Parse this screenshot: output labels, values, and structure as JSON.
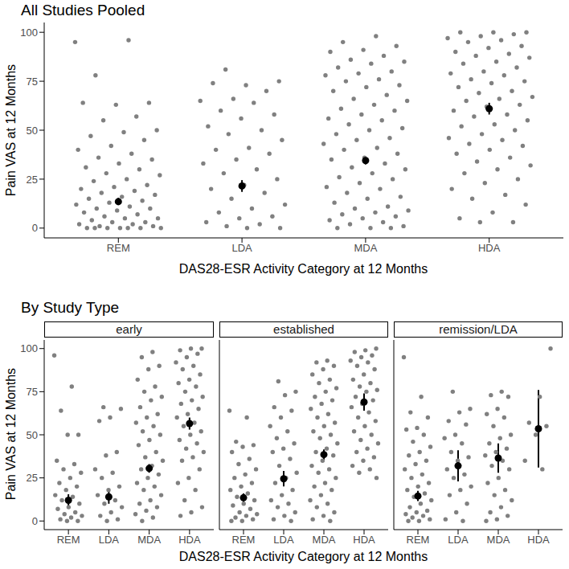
{
  "chart_data": [
    {
      "type": "scatter",
      "title": "All Studies Pooled",
      "x_label": "DAS28-ESR Activity Category at 12 Months",
      "y_label": "Pain VAS at 12 Months",
      "categories": [
        "REM",
        "LDA",
        "MDA",
        "HDA"
      ],
      "ylim": [
        -5,
        105
      ],
      "yticks": [
        0,
        25,
        50,
        75,
        100
      ],
      "color": "#808080",
      "values": [
        [
          95,
          96,
          78,
          64,
          63,
          64,
          57,
          55,
          50,
          49,
          47,
          45,
          42,
          40,
          38,
          36,
          35,
          33,
          31,
          30,
          28,
          27,
          25,
          24,
          22,
          21,
          20,
          19,
          18,
          17,
          16,
          15,
          14,
          13,
          12,
          11,
          10,
          10,
          9,
          8,
          7,
          6,
          5,
          5,
          4,
          3,
          3,
          2,
          2,
          1,
          1,
          0,
          0,
          0,
          0,
          0,
          0,
          0
        ],
        [
          81,
          75,
          73,
          74,
          70,
          66,
          65,
          64,
          60,
          58,
          56,
          52,
          50,
          48,
          45,
          41,
          40,
          38,
          35,
          33,
          30,
          28,
          25,
          22,
          20,
          18,
          15,
          12,
          10,
          8,
          6,
          5,
          3,
          2,
          1,
          0,
          0
        ],
        [
          98,
          95,
          93,
          91,
          90,
          88,
          86,
          85,
          84,
          82,
          80,
          79,
          78,
          76,
          75,
          73,
          72,
          70,
          68,
          66,
          65,
          63,
          61,
          60,
          58,
          56,
          55,
          53,
          51,
          50,
          48,
          46,
          45,
          43,
          41,
          40,
          38,
          36,
          35,
          33,
          31,
          30,
          28,
          26,
          25,
          23,
          21,
          20,
          18,
          16,
          15,
          13,
          11,
          10,
          9,
          8,
          7,
          6,
          5,
          4,
          3,
          2,
          1,
          0,
          0,
          0
        ],
        [
          100,
          100,
          100,
          99,
          98,
          97,
          96,
          95,
          93,
          92,
          90,
          89,
          88,
          87,
          85,
          84,
          82,
          80,
          79,
          78,
          76,
          75,
          74,
          72,
          70,
          69,
          67,
          66,
          65,
          63,
          62,
          60,
          58,
          57,
          55,
          53,
          52,
          50,
          48,
          46,
          45,
          43,
          42,
          40,
          38,
          36,
          34,
          32,
          30,
          28,
          25,
          23,
          20,
          17,
          15,
          12,
          8,
          5,
          3,
          3
        ]
      ],
      "means": [
        13.5,
        21.5,
        34.5,
        61
      ],
      "ci_low": [
        12,
        18.5,
        32.5,
        58
      ],
      "ci_high": [
        15.5,
        24.5,
        36.5,
        64
      ]
    },
    {
      "type": "scatter",
      "title": "By Study Type",
      "x_label": "DAS28-ESR Activity Category at 12 Months",
      "y_label": "Pain VAS at 12 Months",
      "categories": [
        "REM",
        "LDA",
        "MDA",
        "HDA"
      ],
      "ylim": [
        -5,
        105
      ],
      "yticks": [
        0,
        25,
        50,
        75,
        100
      ],
      "color": "#808080",
      "panels": [
        {
          "label": "early",
          "values": [
            [
              96,
              78,
              64,
              50,
              50,
              35,
              33,
              30,
              28,
              25,
              22,
              20,
              18,
              15,
              14,
              12,
              10,
              8,
              7,
              5,
              4,
              3,
              2,
              1,
              0,
              0
            ],
            [
              66,
              65,
              60,
              58,
              40,
              38,
              30,
              28,
              25,
              20,
              18,
              15,
              12,
              10,
              8,
              5,
              3,
              1,
              0
            ],
            [
              98,
              95,
              90,
              88,
              82,
              78,
              75,
              72,
              70,
              66,
              62,
              60,
              57,
              55,
              52,
              50,
              47,
              44,
              40,
              37,
              35,
              32,
              30,
              27,
              25,
              22,
              20,
              18,
              15,
              12,
              10,
              8,
              6,
              4,
              2,
              0
            ],
            [
              100,
              100,
              99,
              97,
              95,
              92,
              90,
              88,
              85,
              82,
              80,
              78,
              75,
              72,
              70,
              68,
              65,
              62,
              60,
              57,
              55,
              52,
              50,
              47,
              45,
              42,
              40,
              37,
              35,
              30,
              25,
              22,
              18,
              12,
              8,
              5,
              3
            ]
          ],
          "means": [
            12,
            14,
            30.5,
            56.5
          ],
          "ci_low": [
            8.5,
            10,
            28,
            53
          ],
          "ci_high": [
            15.5,
            18,
            33,
            60
          ]
        },
        {
          "label": "established",
          "values": [
            [
              64,
              60,
              46,
              44,
              43,
              40,
              36,
              33,
              30,
              27,
              25,
              22,
              20,
              18,
              16,
              14,
              12,
              10,
              9,
              7,
              5,
              4,
              3,
              2,
              1,
              0,
              0
            ],
            [
              81,
              75,
              73,
              66,
              64,
              60,
              55,
              52,
              48,
              45,
              42,
              40,
              36,
              32,
              28,
              25,
              22,
              18,
              15,
              12,
              10,
              8,
              5,
              3,
              1,
              0
            ],
            [
              93,
              92,
              90,
              88,
              85,
              82,
              80,
              77,
              75,
              72,
              70,
              68,
              65,
              62,
              60,
              57,
              55,
              52,
              50,
              48,
              45,
              42,
              40,
              38,
              35,
              32,
              30,
              28,
              25,
              22,
              20,
              18,
              15,
              12,
              10,
              8,
              5,
              3,
              1,
              0
            ],
            [
              100,
              99,
              98,
              96,
              95,
              93,
              92,
              90,
              88,
              85,
              82,
              80,
              78,
              76,
              75,
              72,
              70,
              68,
              66,
              63,
              60,
              58,
              55,
              52,
              50,
              47,
              45,
              42,
              40,
              37,
              35,
              32,
              30,
              28,
              25
            ]
          ],
          "means": [
            13.5,
            24.5,
            38.5,
            69
          ],
          "ci_low": [
            11,
            20,
            35.5,
            64
          ],
          "ci_high": [
            16,
            29,
            41.5,
            74
          ]
        },
        {
          "label": "remission/LDA",
          "values": [
            [
              95,
              72,
              63,
              60,
              54,
              53,
              50,
              46,
              43,
              40,
              38,
              35,
              33,
              30,
              27,
              25,
              22,
              20,
              18,
              16,
              14,
              12,
              10,
              8,
              6,
              5,
              4,
              3,
              2,
              1,
              0,
              0
            ],
            [
              75,
              65,
              63,
              58,
              56,
              50,
              48,
              45,
              40,
              37,
              35,
              30,
              27,
              25,
              20,
              18,
              15,
              10,
              5,
              1,
              0
            ],
            [
              75,
              73,
              72,
              65,
              62,
              60,
              55,
              50,
              48,
              45,
              42,
              40,
              38,
              35,
              32,
              30,
              25,
              22,
              18,
              15,
              12,
              8,
              5,
              3,
              1,
              0
            ],
            [
              100,
              72,
              57,
              55,
              50,
              35,
              30
            ]
          ],
          "means": [
            14.5,
            32,
            36.5,
            53.5
          ],
          "ci_low": [
            11.5,
            23,
            28,
            31
          ],
          "ci_high": [
            17.5,
            41,
            45,
            76
          ]
        }
      ]
    }
  ]
}
